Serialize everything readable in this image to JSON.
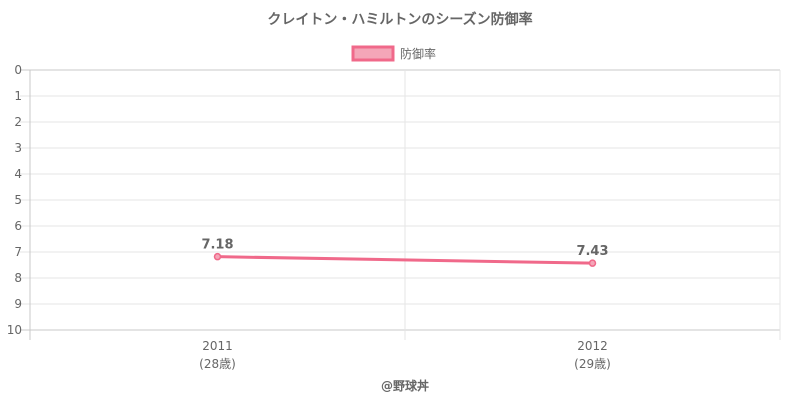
{
  "chart_data": {
    "type": "line",
    "title": "クレイトン・ハミルトンのシーズン防御率",
    "categories": [
      {
        "year": "2011",
        "age": "(28歳)"
      },
      {
        "year": "2012",
        "age": "(29歳)"
      }
    ],
    "series": [
      {
        "name": "防御率",
        "values": [
          7.18,
          7.43
        ],
        "labels": [
          "7.18",
          "7.43"
        ]
      }
    ],
    "ylim": [
      0,
      10
    ],
    "y_reversed": true,
    "y_ticks": [
      "0",
      "1",
      "2",
      "3",
      "4",
      "5",
      "6",
      "7",
      "8",
      "9",
      "10"
    ],
    "grid": true,
    "legend_position": "top",
    "colors": {
      "line": "#f0698a",
      "fill": "#f4a6b8",
      "grid": "#e5e5e5",
      "text": "#666666"
    }
  },
  "credit": "@野球丼"
}
